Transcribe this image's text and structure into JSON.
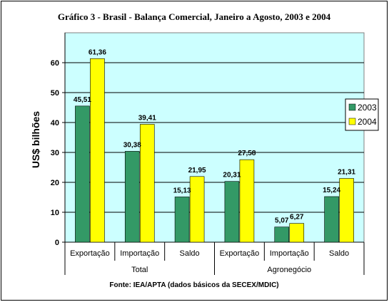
{
  "chart_data": {
    "type": "bar",
    "title": "Gráfico 3 - Brasil - Balança Comercial, Janeiro a Agosto, 2003 e 2004",
    "ylabel": "US$ bilhões",
    "xlabel": "",
    "ylim": [
      0,
      70
    ],
    "yticks": [
      "0",
      "10",
      "20",
      "30",
      "40",
      "50",
      "60"
    ],
    "grid": true,
    "legend_position": "right",
    "categories": [
      "Exportação",
      "Importação",
      "Saldo",
      "Exportação",
      "Importação",
      "Saldo"
    ],
    "groups": [
      {
        "label": "Total",
        "span": [
          0,
          2
        ]
      },
      {
        "label": "Agronegócio",
        "span": [
          3,
          5
        ]
      }
    ],
    "series": [
      {
        "name": "2003",
        "color": "#339966",
        "values": [
          45.51,
          30.38,
          15.13,
          20.31,
          5.07,
          15.24
        ],
        "labels": [
          "45,51",
          "30,38",
          "15,13",
          "20,31",
          "5,07",
          "15,24"
        ]
      },
      {
        "name": "2004",
        "color": "#FFFF00",
        "values": [
          61.36,
          39.41,
          21.95,
          27.58,
          6.27,
          21.31
        ],
        "labels": [
          "61,36",
          "39,41",
          "21,95",
          "27,58",
          "6,27",
          "21,31"
        ]
      }
    ],
    "plot_background": "#CCFFFF",
    "source": "Fonte: IEA/APTA (dados básicos da SECEX/MDIC)"
  }
}
